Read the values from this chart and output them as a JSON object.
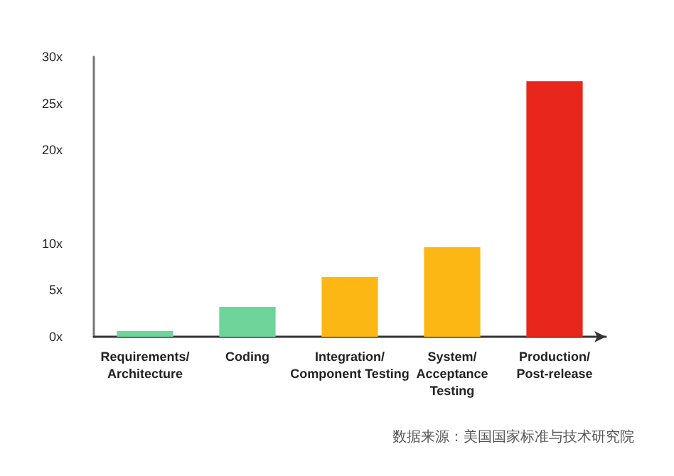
{
  "chart_data": {
    "type": "bar",
    "categories": [
      "Requirements/\nArchitecture",
      "Coding",
      "Integration/\nComponent Testing",
      "System/\nAcceptance\nTesting",
      "Production/\nPost-release"
    ],
    "values": [
      0.6,
      3.2,
      6.4,
      9.6,
      27.4
    ],
    "colors": [
      "#6dd49a",
      "#6dd49a",
      "#fdb714",
      "#fdb714",
      "#e8261c"
    ],
    "ylim": [
      0,
      30
    ],
    "yticks": [
      {
        "value": 0,
        "label": "0x"
      },
      {
        "value": 5,
        "label": "5x"
      },
      {
        "value": 10,
        "label": "10x"
      },
      {
        "value": 20,
        "label": "20x"
      },
      {
        "value": 25,
        "label": "25x"
      },
      {
        "value": 30,
        "label": "30x"
      }
    ],
    "grid": false,
    "annotations": [
      "数据来源：美国国家标准与技术研究院"
    ]
  }
}
